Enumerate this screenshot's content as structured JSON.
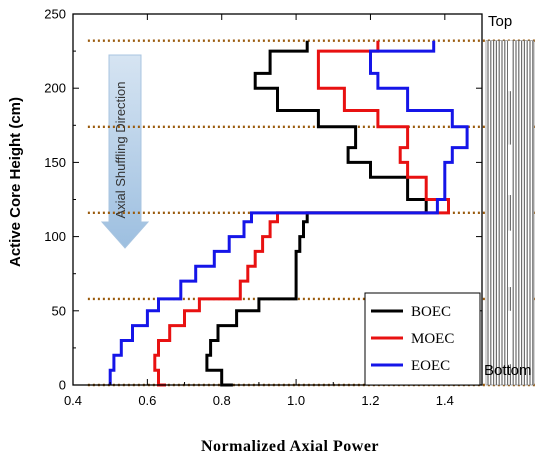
{
  "chart_data": {
    "type": "line",
    "xlabel": "Normalized Axial Power",
    "ylabel": "Active Core Height (cm)",
    "xlim": [
      0.4,
      1.5
    ],
    "ylim": [
      0,
      250
    ],
    "xticks": [
      "0.4",
      "0.6",
      "0.8",
      "1.0",
      "1.2",
      "1.4"
    ],
    "yticks": [
      "0",
      "50",
      "100",
      "150",
      "200",
      "250"
    ],
    "zone_boundaries": [
      0,
      58,
      116,
      174,
      232
    ],
    "annotation": "Axial Shuffling Direction",
    "side_labels": {
      "top": "Top",
      "bottom": "Bottom"
    },
    "legend": {
      "placement": "bottom-right",
      "entries": [
        "BOEC",
        "MOEC",
        "EOEC"
      ]
    },
    "series": [
      {
        "name": "BOEC",
        "color": "#000000",
        "y": [
          0,
          10,
          20,
          30,
          40,
          50,
          58,
          70,
          80,
          90,
          100,
          110,
          116,
          125,
          140,
          150,
          160,
          174,
          185,
          200,
          210,
          225,
          232
        ],
        "x": [
          0.83,
          0.8,
          0.76,
          0.77,
          0.79,
          0.84,
          0.9,
          1.0,
          1.0,
          1.0,
          1.01,
          1.02,
          1.03,
          1.35,
          1.3,
          1.2,
          1.14,
          1.16,
          1.06,
          0.95,
          0.89,
          0.93,
          1.03
        ]
      },
      {
        "name": "MOEC",
        "color": "#e81111",
        "y": [
          0,
          10,
          20,
          30,
          40,
          50,
          58,
          70,
          80,
          90,
          100,
          110,
          116,
          125,
          140,
          150,
          160,
          174,
          185,
          200,
          210,
          225,
          232
        ],
        "x": [
          0.65,
          0.63,
          0.62,
          0.63,
          0.66,
          0.7,
          0.74,
          0.85,
          0.87,
          0.89,
          0.91,
          0.93,
          0.95,
          1.41,
          1.35,
          1.3,
          1.28,
          1.3,
          1.22,
          1.13,
          1.06,
          1.06,
          1.22
        ]
      },
      {
        "name": "EOEC",
        "color": "#1515e8",
        "y": [
          0,
          10,
          20,
          30,
          40,
          50,
          58,
          70,
          80,
          90,
          100,
          110,
          116,
          125,
          140,
          150,
          160,
          174,
          185,
          200,
          210,
          225,
          232
        ],
        "x": [
          0.5,
          0.5,
          0.51,
          0.53,
          0.56,
          0.6,
          0.63,
          0.69,
          0.73,
          0.78,
          0.82,
          0.86,
          0.88,
          1.38,
          1.4,
          1.4,
          1.42,
          1.46,
          1.42,
          1.3,
          1.22,
          1.2,
          1.37
        ]
      }
    ]
  }
}
